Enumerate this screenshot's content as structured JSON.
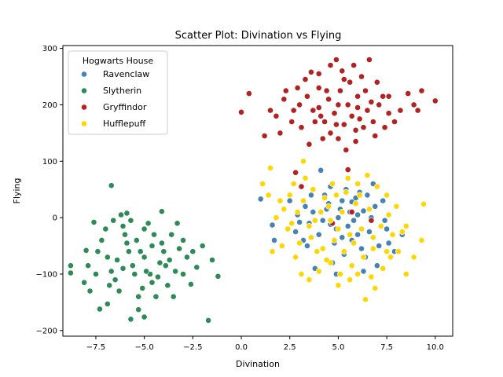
{
  "chart_data": {
    "type": "scatter",
    "title": "Scatter Plot: Divination vs Flying",
    "xlabel": "Divination",
    "ylabel": "Flying",
    "xlim": [
      -9.2,
      10.9
    ],
    "ylim": [
      -210,
      305
    ],
    "x_ticks": [
      -7.5,
      -5.0,
      -2.5,
      0.0,
      2.5,
      5.0,
      7.5,
      10.0
    ],
    "x_tick_labels": [
      "−7.5",
      "−5.0",
      "−2.5",
      "0.0",
      "2.5",
      "5.0",
      "7.5",
      "10.0"
    ],
    "y_ticks": [
      -200,
      -100,
      0,
      100,
      200,
      300
    ],
    "y_tick_labels": [
      "−200",
      "−100",
      "0",
      "100",
      "200",
      "300"
    ],
    "grid": false,
    "legend": {
      "title": "Hogwarts House",
      "placement": "top-left"
    },
    "series": [
      {
        "name": "Ravenclaw",
        "color": "#4682b4",
        "points": [
          [
            4.1,
            84
          ],
          [
            3.6,
            40
          ],
          [
            4.6,
            55
          ],
          [
            5.2,
            30
          ],
          [
            6.1,
            45
          ],
          [
            6.8,
            60
          ],
          [
            7.3,
            30
          ],
          [
            5.6,
            10
          ],
          [
            4.4,
            15
          ],
          [
            3.5,
            -10
          ],
          [
            3.2,
            -40
          ],
          [
            3.9,
            -60
          ],
          [
            4.8,
            -45
          ],
          [
            5.7,
            -40
          ],
          [
            6.4,
            -70
          ],
          [
            7.1,
            -50
          ],
          [
            7.8,
            -30
          ],
          [
            8.3,
            -30
          ],
          [
            2.8,
            -25
          ],
          [
            1.7,
            -40
          ],
          [
            1.6,
            -13
          ],
          [
            1.0,
            33
          ],
          [
            4.9,
            -100
          ],
          [
            6.3,
            -95
          ],
          [
            5.0,
            0
          ],
          [
            5.5,
            -15
          ],
          [
            4.2,
            -5
          ],
          [
            6.0,
            5
          ],
          [
            6.6,
            -25
          ],
          [
            7.5,
            -20
          ],
          [
            3.7,
            10
          ],
          [
            4.5,
            25
          ],
          [
            5.9,
            35
          ],
          [
            6.9,
            20
          ],
          [
            7.4,
            -5
          ],
          [
            2.9,
            5
          ],
          [
            3.3,
            20
          ],
          [
            4.0,
            -30
          ],
          [
            5.3,
            -65
          ],
          [
            6.2,
            -55
          ],
          [
            7.0,
            -85
          ],
          [
            4.7,
            -80
          ],
          [
            3.8,
            -90
          ],
          [
            5.8,
            -5
          ],
          [
            4.3,
            40
          ],
          [
            6.5,
            40
          ],
          [
            2.5,
            30
          ],
          [
            7.9,
            -60
          ],
          [
            5.1,
            15
          ],
          [
            6.7,
            0
          ],
          [
            4.9,
            -20
          ],
          [
            5.4,
            50
          ],
          [
            3.4,
            -50
          ],
          [
            6.0,
            -30
          ],
          [
            7.6,
            -45
          ],
          [
            5.2,
            -35
          ],
          [
            4.6,
            -12
          ],
          [
            5.7,
            28
          ],
          [
            3.0,
            -8
          ],
          [
            6.3,
            12
          ]
        ]
      },
      {
        "name": "Slytherin",
        "color": "#2e8b57",
        "points": [
          [
            -6.7,
            57
          ],
          [
            -4.1,
            11
          ],
          [
            -5.9,
            8
          ],
          [
            -6.2,
            5
          ],
          [
            -7.6,
            -8
          ],
          [
            -8.0,
            -58
          ],
          [
            -8.8,
            -85
          ],
          [
            -8.8,
            -98
          ],
          [
            -7.3,
            -162
          ],
          [
            -6.9,
            -153
          ],
          [
            -5.7,
            -180
          ],
          [
            -5.3,
            -163
          ],
          [
            -5.0,
            -176
          ],
          [
            -1.7,
            -182
          ],
          [
            -1.2,
            -104
          ],
          [
            -1.5,
            -75
          ],
          [
            -2.0,
            -50
          ],
          [
            -2.3,
            -88
          ],
          [
            -2.6,
            -118
          ],
          [
            -3.0,
            -100
          ],
          [
            -3.5,
            -140
          ],
          [
            -3.8,
            -120
          ],
          [
            -4.2,
            -80
          ],
          [
            -4.6,
            -50
          ],
          [
            -5.0,
            -20
          ],
          [
            -5.4,
            -40
          ],
          [
            -5.8,
            -60
          ],
          [
            -6.1,
            -90
          ],
          [
            -6.5,
            -110
          ],
          [
            -6.9,
            -70
          ],
          [
            -7.2,
            -40
          ],
          [
            -7.5,
            -100
          ],
          [
            -7.8,
            -130
          ],
          [
            -8.1,
            -115
          ],
          [
            -7.0,
            -20
          ],
          [
            -6.6,
            -5
          ],
          [
            -6.0,
            -30
          ],
          [
            -5.5,
            -100
          ],
          [
            -5.1,
            -125
          ],
          [
            -4.7,
            -100
          ],
          [
            -4.4,
            -140
          ],
          [
            -4.0,
            -60
          ],
          [
            -3.6,
            -30
          ],
          [
            -3.3,
            -10
          ],
          [
            -3.0,
            -40
          ],
          [
            -2.8,
            -70
          ],
          [
            -3.9,
            -85
          ],
          [
            -4.8,
            -10
          ],
          [
            -5.6,
            -85
          ],
          [
            -6.3,
            -130
          ],
          [
            -6.8,
            -120
          ],
          [
            -7.4,
            -60
          ],
          [
            -5.2,
            -60
          ],
          [
            -4.5,
            -30
          ],
          [
            -3.2,
            -55
          ],
          [
            -5.9,
            -45
          ],
          [
            -6.4,
            -75
          ],
          [
            -4.9,
            -95
          ],
          [
            -3.7,
            -75
          ],
          [
            -5.3,
            -140
          ],
          [
            -4.3,
            -105
          ],
          [
            -6.1,
            -15
          ],
          [
            -5.7,
            -5
          ],
          [
            -3.4,
            -95
          ],
          [
            -2.5,
            -60
          ],
          [
            -7.9,
            -85
          ],
          [
            -4.1,
            -45
          ],
          [
            -5.0,
            -70
          ],
          [
            -6.7,
            -95
          ],
          [
            -4.6,
            -115
          ]
        ]
      },
      {
        "name": "Gryffindor",
        "color": "#b22222",
        "points": [
          [
            2.3,
            225
          ],
          [
            1.5,
            190
          ],
          [
            1.2,
            145
          ],
          [
            0.0,
            187
          ],
          [
            0.4,
            220
          ],
          [
            2.0,
            150
          ],
          [
            2.6,
            170
          ],
          [
            3.0,
            200
          ],
          [
            3.3,
            245
          ],
          [
            3.6,
            258
          ],
          [
            4.0,
            230
          ],
          [
            4.6,
            270
          ],
          [
            4.9,
            280
          ],
          [
            5.2,
            260
          ],
          [
            5.8,
            270
          ],
          [
            6.2,
            250
          ],
          [
            6.6,
            280
          ],
          [
            7.0,
            240
          ],
          [
            7.3,
            215
          ],
          [
            7.6,
            185
          ],
          [
            7.9,
            170
          ],
          [
            8.2,
            190
          ],
          [
            8.6,
            220
          ],
          [
            8.9,
            200
          ],
          [
            9.3,
            225
          ],
          [
            10.0,
            207
          ],
          [
            9.1,
            190
          ],
          [
            4.3,
            170
          ],
          [
            4.6,
            150
          ],
          [
            5.0,
            140
          ],
          [
            5.4,
            120
          ],
          [
            5.9,
            135
          ],
          [
            6.3,
            160
          ],
          [
            6.8,
            170
          ],
          [
            3.5,
            130
          ],
          [
            3.1,
            160
          ],
          [
            2.7,
            190
          ],
          [
            2.2,
            210
          ],
          [
            1.8,
            180
          ],
          [
            4.0,
            195
          ],
          [
            4.5,
            210
          ],
          [
            5.1,
            225
          ],
          [
            5.5,
            200
          ],
          [
            6.0,
            215
          ],
          [
            6.5,
            190
          ],
          [
            7.1,
            200
          ],
          [
            7.6,
            215
          ],
          [
            3.8,
            170
          ],
          [
            4.2,
            140
          ],
          [
            5.7,
            180
          ],
          [
            6.1,
            175
          ],
          [
            5.3,
            165
          ],
          [
            4.8,
            185
          ],
          [
            3.4,
            215
          ],
          [
            2.9,
            230
          ],
          [
            6.9,
            145
          ],
          [
            7.4,
            160
          ],
          [
            4.0,
            255
          ],
          [
            5.6,
            240
          ],
          [
            6.4,
            225
          ],
          [
            3.7,
            190
          ],
          [
            5.0,
            200
          ],
          [
            4.4,
            225
          ],
          [
            6.7,
            205
          ],
          [
            5.9,
            155
          ],
          [
            4.1,
            180
          ],
          [
            5.5,
            85
          ],
          [
            4.7,
            -10
          ],
          [
            5.7,
            10
          ],
          [
            6.7,
            -5
          ],
          [
            3.1,
            55
          ],
          [
            2.8,
            80
          ],
          [
            5.3,
            245
          ],
          [
            6.0,
            195
          ],
          [
            4.9,
            165
          ]
        ]
      },
      {
        "name": "Hufflepuff",
        "color": "#ffd700",
        "points": [
          [
            1.5,
            88
          ],
          [
            2.7,
            60
          ],
          [
            3.2,
            100
          ],
          [
            1.1,
            60
          ],
          [
            1.4,
            40
          ],
          [
            2.0,
            30
          ],
          [
            1.8,
            0
          ],
          [
            2.6,
            -10
          ],
          [
            2.1,
            -50
          ],
          [
            1.6,
            -60
          ],
          [
            2.8,
            -70
          ],
          [
            3.1,
            -100
          ],
          [
            3.5,
            -110
          ],
          [
            4.0,
            -95
          ],
          [
            4.6,
            -80
          ],
          [
            5.0,
            -120
          ],
          [
            5.6,
            -110
          ],
          [
            6.0,
            -100
          ],
          [
            6.4,
            -145
          ],
          [
            6.9,
            -125
          ],
          [
            7.3,
            -90
          ],
          [
            7.7,
            -70
          ],
          [
            8.1,
            -60
          ],
          [
            8.5,
            -100
          ],
          [
            8.9,
            -70
          ],
          [
            9.3,
            -40
          ],
          [
            9.4,
            24
          ],
          [
            8.5,
            -15
          ],
          [
            8.0,
            20
          ],
          [
            7.5,
            40
          ],
          [
            7.0,
            55
          ],
          [
            6.5,
            75
          ],
          [
            6.0,
            60
          ],
          [
            5.5,
            70
          ],
          [
            4.9,
            40
          ],
          [
            4.3,
            35
          ],
          [
            3.7,
            50
          ],
          [
            3.2,
            30
          ],
          [
            2.9,
            10
          ],
          [
            2.4,
            -20
          ],
          [
            3.6,
            -35
          ],
          [
            4.2,
            -55
          ],
          [
            4.8,
            -40
          ],
          [
            5.3,
            -60
          ],
          [
            5.8,
            -45
          ],
          [
            6.2,
            -20
          ],
          [
            6.8,
            -35
          ],
          [
            7.2,
            -15
          ],
          [
            7.6,
            5
          ],
          [
            6.6,
            15
          ],
          [
            5.9,
            25
          ],
          [
            5.2,
            10
          ],
          [
            4.6,
            -5
          ],
          [
            4.1,
            10
          ],
          [
            3.5,
            -15
          ],
          [
            3.0,
            -45
          ],
          [
            2.5,
            40
          ],
          [
            5.0,
            -20
          ],
          [
            5.6,
            -30
          ],
          [
            6.3,
            -70
          ],
          [
            4.4,
            -75
          ],
          [
            3.9,
            -60
          ],
          [
            5.7,
            -85
          ],
          [
            6.8,
            -55
          ],
          [
            7.5,
            -60
          ],
          [
            3.3,
            70
          ],
          [
            4.7,
            60
          ],
          [
            5.4,
            45
          ],
          [
            6.1,
            40
          ],
          [
            7.8,
            -30
          ],
          [
            8.3,
            -25
          ],
          [
            2.2,
            15
          ],
          [
            3.8,
            -5
          ],
          [
            4.5,
            20
          ],
          [
            5.1,
            -100
          ],
          [
            6.7,
            -105
          ]
        ]
      }
    ]
  }
}
